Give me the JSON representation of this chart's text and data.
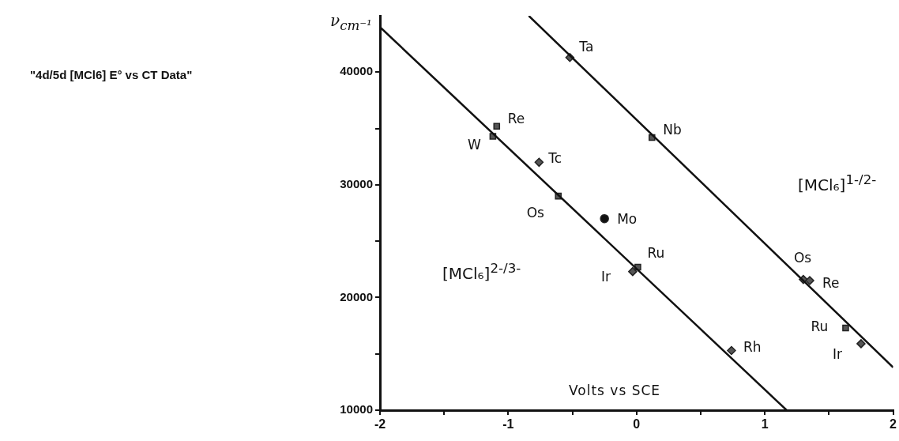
{
  "chart_data": {
    "type": "scatter",
    "title": "\"4d/5d  [MCl6] E° vs CT Data\"",
    "xlabel": "Volts vs SCE",
    "ylabel": "ν$_{cm⁻¹}$",
    "xlim": [
      -2,
      2
    ],
    "ylim": [
      10000,
      45000
    ],
    "xticks": [
      -2,
      {
        "value": -1.5,
        "label": null
      },
      -1,
      {
        "value": -0.5,
        "label": null
      },
      0,
      {
        "value": 0.5,
        "label": null
      },
      1,
      {
        "value": 1.5,
        "label": null
      },
      2
    ],
    "yticks": [
      10000,
      {
        "value": 15000,
        "label": null
      },
      20000,
      {
        "value": 25000,
        "label": null
      },
      30000,
      {
        "value": 35000,
        "label": null
      },
      40000
    ],
    "grid": false,
    "legend": false,
    "series": [
      {
        "type": "line",
        "color": "#111111",
        "marker": "none",
        "x": [
          -2,
          1.17
        ],
        "values": [
          44000,
          10000
        ]
      },
      {
        "type": "line",
        "color": "#111111",
        "marker": "none",
        "x": [
          -0.84,
          2
        ],
        "values": [
          45000,
          13800
        ]
      },
      {
        "color": "#555555",
        "marker": "square",
        "x": [
          -1.12,
          -1.09,
          -0.61,
          0.01,
          0.12,
          1.63
        ],
        "values": [
          34300,
          35200,
          29000,
          22700,
          34200,
          17300
        ]
      },
      {
        "color": "#555555",
        "marker": "diamond",
        "x": [
          -0.76,
          -0.03,
          0.74,
          -0.52,
          1.3,
          1.35,
          1.75
        ],
        "values": [
          32000,
          22300,
          15300,
          41300,
          21600,
          21500,
          15900
        ]
      },
      {
        "color": "#111111",
        "marker": "circle",
        "x": [
          -0.25
        ],
        "values": [
          27000
        ]
      }
    ],
    "annotations": [
      {
        "text": "Re",
        "x": -1.09,
        "y": 35200
      },
      {
        "text": "W",
        "x": -1.12,
        "y": 34300
      },
      {
        "text": "Tc",
        "x": -0.76,
        "y": 32000
      },
      {
        "text": "Os",
        "x": -0.61,
        "y": 29000
      },
      {
        "text": "Mo",
        "x": -0.25,
        "y": 27000
      },
      {
        "text": "Ru",
        "x": 0.01,
        "y": 22700
      },
      {
        "text": "Ir",
        "x": -0.03,
        "y": 22300
      },
      {
        "text": "Rh",
        "x": 0.74,
        "y": 15300
      },
      {
        "text": "Ta",
        "x": -0.52,
        "y": 41300
      },
      {
        "text": "Nb",
        "x": 0.12,
        "y": 34200
      },
      {
        "text": "Os",
        "x": 1.3,
        "y": 21600
      },
      {
        "text": "Re",
        "x": 1.35,
        "y": 21500
      },
      {
        "text": "Ru",
        "x": 1.63,
        "y": 17300
      },
      {
        "text": "Ir",
        "x": 1.75,
        "y": 15900
      },
      "[MCl₆]$^{2-/3-}$",
      "[MCl₆]$^{1-/2-}$"
    ]
  }
}
